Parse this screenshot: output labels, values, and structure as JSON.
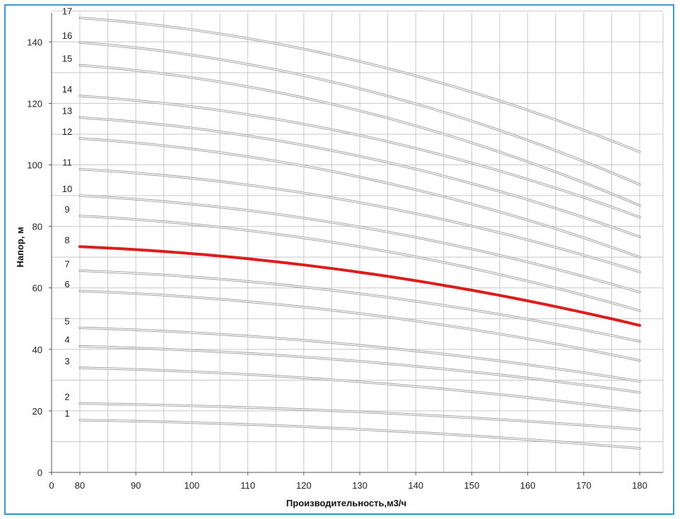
{
  "chart_data": {
    "type": "line",
    "title": "",
    "xlabel": "Производительность,м3/ч",
    "ylabel": "Напор, м",
    "xlim": [
      0,
      180
    ],
    "ylim": [
      0,
      150
    ],
    "x_ticks": [
      "0",
      "80",
      "90",
      "100",
      "110",
      "120",
      "130",
      "140",
      "150",
      "160",
      "170",
      "180"
    ],
    "y_ticks": [
      "0",
      "20",
      "40",
      "60",
      "80",
      "100",
      "120",
      "140"
    ],
    "grid": true,
    "highlight_color": "#dd1c1c",
    "curve_color": "#9a9a9a",
    "x": [
      80,
      180
    ],
    "series": [
      {
        "name": "1",
        "values": [
          17.0,
          7.8
        ]
      },
      {
        "name": "2",
        "values": [
          22.4,
          14.0
        ]
      },
      {
        "name": "3",
        "values": [
          34.0,
          20.0
        ]
      },
      {
        "name": "4",
        "values": [
          41.0,
          26.0
        ]
      },
      {
        "name": "5",
        "values": [
          47.0,
          29.6
        ]
      },
      {
        "name": "6",
        "values": [
          59.0,
          36.4
        ]
      },
      {
        "name": "7",
        "values": [
          65.6,
          42.6
        ]
      },
      {
        "name": "8",
        "values": [
          73.4,
          47.8
        ],
        "highlight": true
      },
      {
        "name": "9",
        "values": [
          83.4,
          52.6
        ]
      },
      {
        "name": "10",
        "values": [
          90.0,
          58.6
        ]
      },
      {
        "name": "11",
        "values": [
          98.6,
          65.2
        ]
      },
      {
        "name": "12",
        "values": [
          108.6,
          70.0
        ]
      },
      {
        "name": "13",
        "values": [
          115.4,
          76.6
        ]
      },
      {
        "name": "14",
        "values": [
          122.4,
          83.0
        ]
      },
      {
        "name": "15",
        "values": [
          132.4,
          86.8
        ]
      },
      {
        "name": "16",
        "values": [
          139.8,
          93.6
        ]
      },
      {
        "name": "17",
        "values": [
          147.8,
          104.2
        ]
      }
    ]
  }
}
